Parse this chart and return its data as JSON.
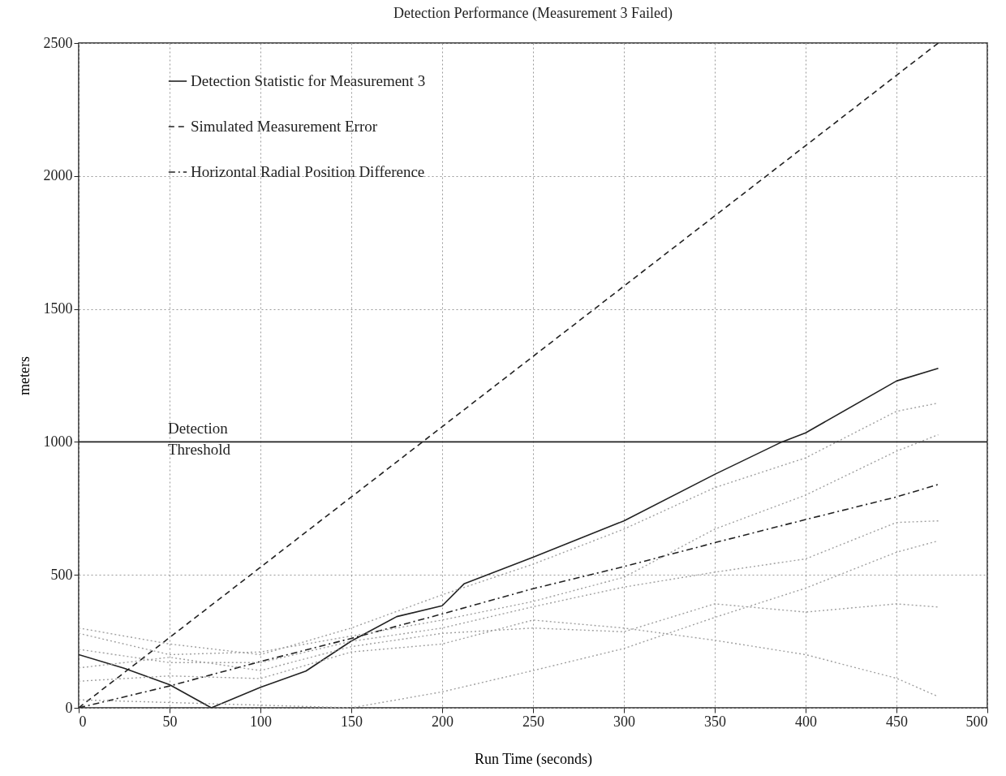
{
  "chart_data": {
    "type": "line",
    "title": "Detection Performance (Measurement 3 Failed)",
    "xlabel": "Run Time (seconds)",
    "ylabel": "meters",
    "xlim": [
      0,
      500
    ],
    "xticks": [
      0,
      50,
      100,
      150,
      200,
      250,
      300,
      350,
      400,
      450,
      500
    ],
    "ylim": [
      0,
      2500
    ],
    "yticks": [
      0,
      500,
      1000,
      1500,
      2000,
      2500
    ],
    "grid": true,
    "legend": "top left",
    "ref_lines": [
      {
        "axis": "y",
        "value": 1000,
        "label": "Detection Threshold",
        "color": "#222222",
        "line_style": "solid"
      }
    ],
    "series": [
      {
        "name": "Detection Statistic for Measurement 3",
        "color": "#222222",
        "line_style": "solid",
        "x": [
          0,
          25,
          50,
          73,
          100,
          125,
          150,
          175,
          200,
          212,
          250,
          300,
          350,
          387,
          400,
          450,
          473
        ],
        "values": [
          200,
          149,
          87,
          0,
          77,
          138,
          251,
          343,
          384,
          466,
          566,
          703,
          878,
          1000,
          1034,
          1229,
          1277
        ]
      },
      {
        "name": "Simulated Measurement Error",
        "color": "#222222",
        "line_style": "dashed",
        "x": [
          0,
          473
        ],
        "values": [
          0,
          2500
        ]
      },
      {
        "name": "Horizontal Radial Position Difference",
        "color": "#222222",
        "line_style": "dashdot",
        "x": [
          0,
          50,
          100,
          150,
          200,
          250,
          300,
          350,
          400,
          450,
          473
        ],
        "values": [
          0,
          82,
          174,
          261,
          353,
          448,
          531,
          621,
          708,
          793,
          840
        ]
      },
      {
        "color": "#a0a0a0",
        "line_style": "dotted",
        "x": [
          0,
          50,
          100,
          150,
          200,
          250,
          300,
          350,
          400,
          450,
          473
        ],
        "values": [
          300,
          240,
          200,
          300,
          425,
          540,
          672,
          828,
          940,
          1115,
          1146
        ]
      },
      {
        "color": "#a0a0a0",
        "line_style": "dotted",
        "x": [
          0,
          50,
          100,
          150,
          200,
          250,
          300,
          350,
          400,
          450,
          473
        ],
        "values": [
          280,
          200,
          210,
          270,
          330,
          400,
          491,
          672,
          800,
          965,
          1027
        ]
      },
      {
        "color": "#a0a0a0",
        "line_style": "dotted",
        "x": [
          0,
          50,
          100,
          150,
          200,
          250,
          300,
          350,
          400,
          450,
          473
        ],
        "values": [
          220,
          170,
          170,
          250,
          300,
          380,
          454,
          510,
          560,
          697,
          703
        ]
      },
      {
        "color": "#a0a0a0",
        "line_style": "dotted",
        "x": [
          0,
          50,
          100,
          150,
          200,
          250,
          300,
          350,
          400,
          450,
          473
        ],
        "values": [
          150,
          190,
          140,
          230,
          280,
          300,
          286,
          391,
          360,
          391,
          379
        ]
      },
      {
        "color": "#a0a0a0",
        "line_style": "dotted",
        "x": [
          0,
          50,
          100,
          150,
          200,
          250,
          300,
          350,
          400,
          450,
          473
        ],
        "values": [
          100,
          120,
          110,
          210,
          240,
          330,
          300,
          254,
          200,
          111,
          42
        ]
      },
      {
        "color": "#a0a0a0",
        "line_style": "dotted",
        "x": [
          0,
          50,
          100,
          150,
          200,
          250,
          300,
          350,
          400,
          450,
          473
        ],
        "values": [
          30,
          20,
          10,
          0,
          60,
          140,
          223,
          340,
          450,
          585,
          628
        ]
      }
    ]
  }
}
